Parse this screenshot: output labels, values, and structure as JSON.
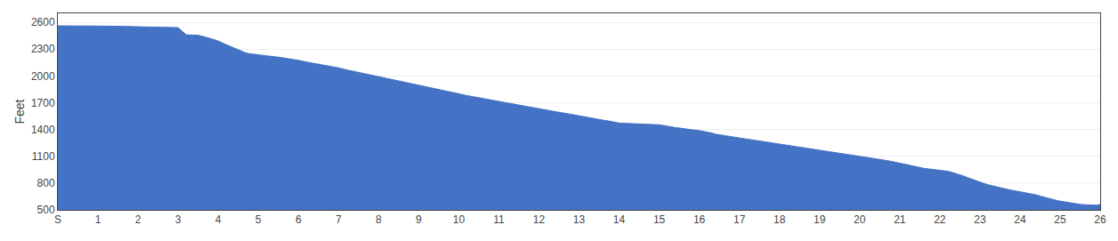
{
  "chart_data": {
    "type": "area",
    "ylabel": "Feet",
    "color": "#4472C4",
    "grid": true,
    "xlim": [
      0,
      26
    ],
    "xticks": [
      {
        "value": 0,
        "label": "S"
      },
      1,
      2,
      3,
      4,
      5,
      6,
      7,
      8,
      9,
      10,
      11,
      12,
      13,
      14,
      15,
      16,
      17,
      18,
      19,
      20,
      21,
      22,
      23,
      24,
      25,
      26
    ],
    "ylim": [
      500,
      2700
    ],
    "yticks": [
      500,
      800,
      1100,
      1400,
      1700,
      2000,
      2300,
      2600
    ],
    "x": [
      0,
      0.5,
      1.0,
      1.5,
      2.0,
      2.5,
      3.0,
      3.2,
      3.5,
      3.8,
      4.0,
      4.2,
      4.4,
      4.5,
      4.6,
      4.7,
      4.8,
      5.0,
      5.2,
      5.5,
      5.8,
      6.0,
      6.2,
      6.5,
      6.8,
      7.0,
      7.2,
      7.5,
      7.8,
      8.0,
      8.2,
      8.5,
      8.8,
      9.0,
      9.2,
      9.5,
      9.8,
      10.0,
      10.2,
      10.5,
      10.8,
      11.0,
      11.2,
      11.5,
      11.8,
      12.0,
      12.2,
      12.5,
      12.8,
      13.0,
      13.2,
      13.5,
      13.8,
      14.0,
      14.2,
      14.4,
      14.5,
      14.6,
      14.8,
      15.0,
      15.1,
      15.2,
      15.3,
      15.4,
      15.5,
      15.6,
      15.8,
      16.0,
      16.2,
      16.3,
      16.4,
      16.5,
      16.6,
      16.8,
      17.0,
      17.2,
      17.5,
      17.8,
      18.0,
      18.2,
      18.5,
      18.8,
      19.0,
      19.2,
      19.5,
      19.8,
      20.0,
      20.2,
      20.5,
      20.8,
      21.0,
      21.2,
      21.4,
      21.5,
      21.6,
      21.8,
      22.0,
      22.1,
      22.2,
      22.3,
      22.4,
      22.5,
      22.6,
      22.7,
      22.8,
      22.9,
      23.0,
      23.1,
      23.2,
      23.3,
      23.4,
      23.5,
      23.6,
      23.7,
      23.8,
      23.9,
      24.0,
      24.1,
      24.2,
      24.3,
      24.4,
      24.5,
      24.6,
      24.7,
      24.8,
      24.9,
      25.0,
      25.1,
      25.2,
      25.3,
      25.4,
      25.5,
      25.6,
      25.7,
      25.8,
      25.9,
      26.0
    ],
    "values": [
      2560,
      2562,
      2558,
      2555,
      2550,
      2548,
      2540,
      2460,
      2455,
      2420,
      2390,
      2350,
      2310,
      2295,
      2270,
      2255,
      2248,
      2240,
      2225,
      2210,
      2190,
      2175,
      2155,
      2130,
      2110,
      2090,
      2068,
      2040,
      2012,
      1990,
      1968,
      1940,
      1915,
      1895,
      1875,
      1848,
      1820,
      1800,
      1780,
      1755,
      1730,
      1712,
      1695,
      1672,
      1650,
      1632,
      1615,
      1592,
      1570,
      1552,
      1535,
      1512,
      1490,
      1472,
      1468,
      1465,
      1462,
      1458,
      1455,
      1452,
      1445,
      1440,
      1430,
      1422,
      1415,
      1408,
      1398,
      1388,
      1372,
      1362,
      1348,
      1340,
      1332,
      1318,
      1305,
      1292,
      1272,
      1252,
      1238,
      1224,
      1205,
      1186,
      1172,
      1158,
      1138,
      1118,
      1102,
      1086,
      1065,
      1042,
      1025,
      1005,
      985,
      975,
      965,
      955,
      948,
      940,
      932,
      920,
      908,
      895,
      878,
      860,
      842,
      825,
      808,
      795,
      782,
      770,
      758,
      748,
      738,
      728,
      720,
      712,
      705,
      698,
      690,
      680,
      668,
      655,
      642,
      630,
      618,
      608,
      598,
      590,
      582,
      575,
      568,
      562,
      558,
      555,
      553,
      552,
      560
    ]
  }
}
